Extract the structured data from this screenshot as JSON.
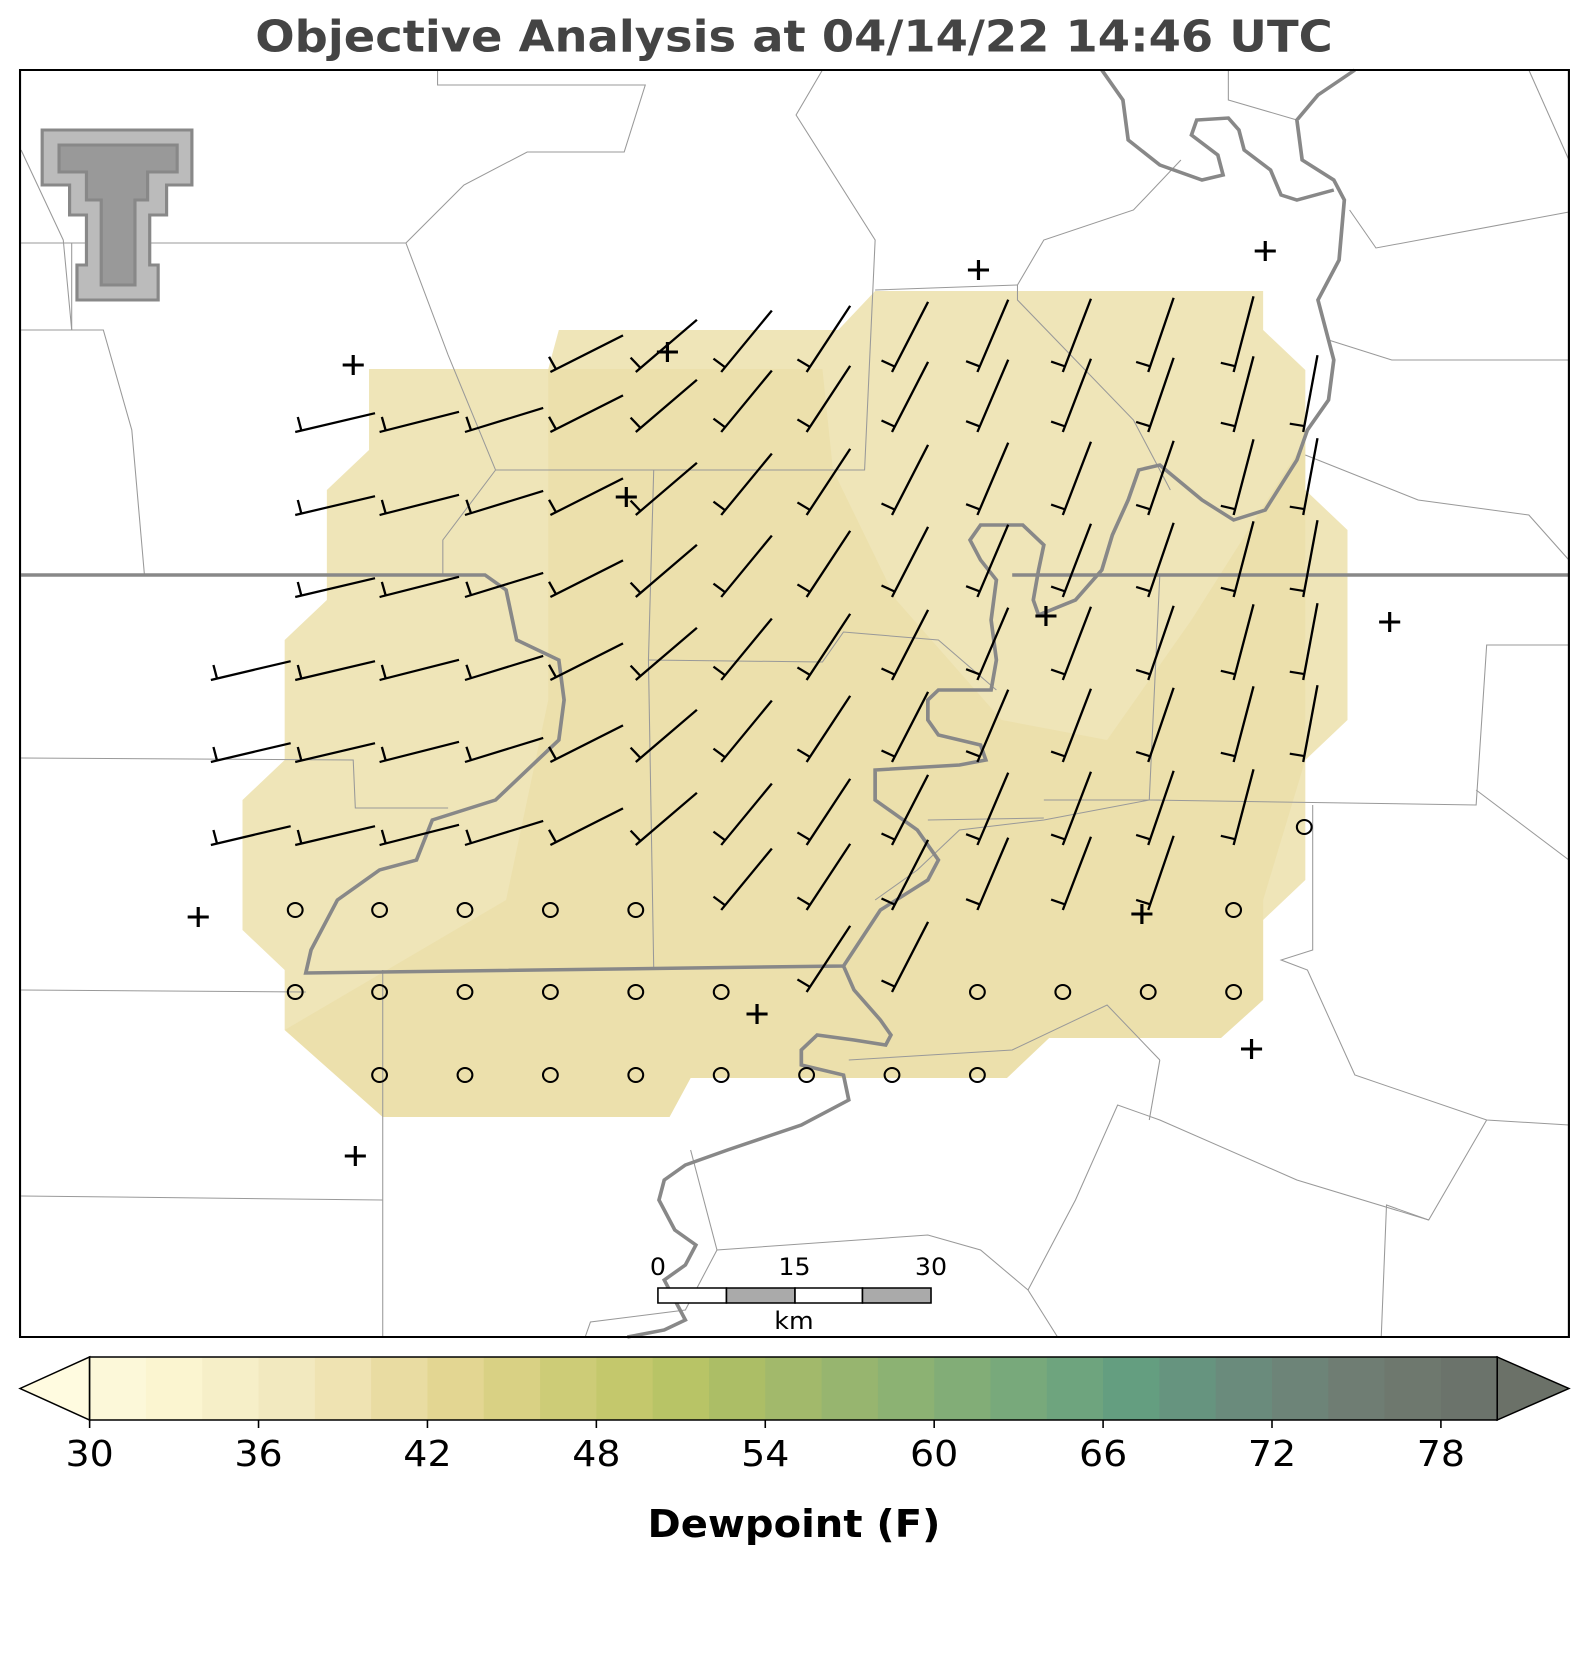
{
  "title": "Objective Analysis at 04/14/22 14:46 UTC",
  "colorbar": {
    "label": "Dewpoint (F)",
    "lim": [
      30,
      80
    ],
    "ticks": [
      30,
      36,
      42,
      48,
      54,
      60,
      66,
      72,
      78
    ],
    "levels": [
      30,
      32,
      34,
      36,
      38,
      40,
      42,
      44,
      46,
      48,
      50,
      52,
      54,
      56,
      58,
      60,
      62,
      64,
      66,
      68,
      70,
      72,
      74,
      76,
      78,
      80
    ],
    "colors": [
      "#fcf8d9",
      "#fbf5d0",
      "#f6efc8",
      "#f2e9bf",
      "#efe3b2",
      "#e9dca2",
      "#e3d692",
      "#d9d184",
      "#cdcc77",
      "#c4c86c",
      "#b8c466",
      "#acbe66",
      "#a2b96b",
      "#97b56f",
      "#8cb273",
      "#82ad77",
      "#78a97b",
      "#6ea47e",
      "#649e80",
      "#66947f",
      "#6a8b7c",
      "#6d8478",
      "#6f7d73",
      "#6e786e",
      "#6b736b"
    ],
    "extend_colors": [
      "#fffbe0",
      "#6b7168"
    ]
  },
  "scale_bar": {
    "unit": "km",
    "ticks": [
      0,
      15,
      30
    ]
  }
}
